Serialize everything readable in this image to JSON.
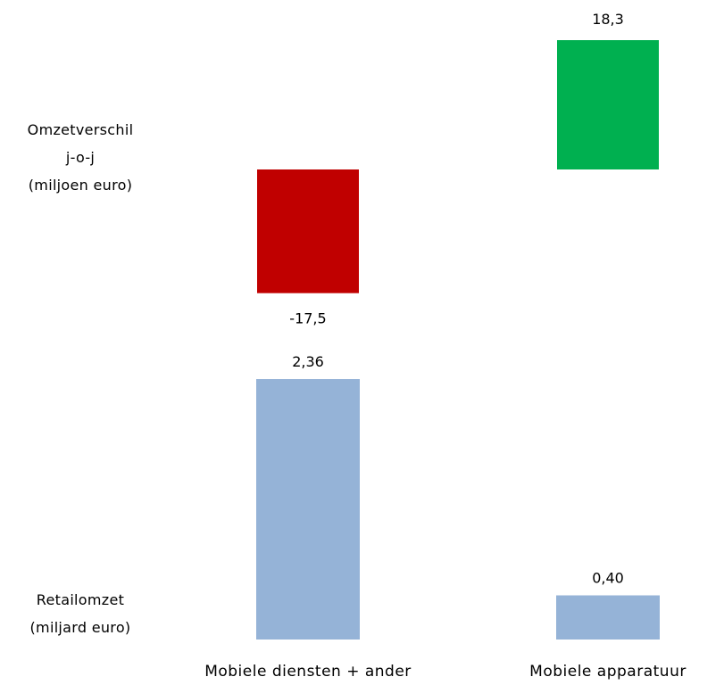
{
  "chart_data": [
    {
      "type": "bar",
      "ylabel": [
        "Omzetverschil",
        "j-o-j",
        "(miljoen euro)"
      ],
      "categories": [
        "Mobiele diensten + ander",
        "Mobiele apparatuur"
      ],
      "values": [
        -17.5,
        18.3
      ],
      "value_labels": [
        "-17,5",
        "18,3"
      ],
      "colors": [
        "#c00000",
        "#00b050"
      ]
    },
    {
      "type": "bar",
      "ylabel": [
        "Retailomzet",
        "(miljard euro)"
      ],
      "categories": [
        "Mobiele diensten + ander",
        "Mobiele apparatuur"
      ],
      "values": [
        2.36,
        0.4
      ],
      "value_labels": [
        "2,36",
        "0,40"
      ],
      "colors": [
        "#95b3d7",
        "#95b3d7"
      ],
      "ylim": [
        0,
        2.36
      ]
    }
  ]
}
